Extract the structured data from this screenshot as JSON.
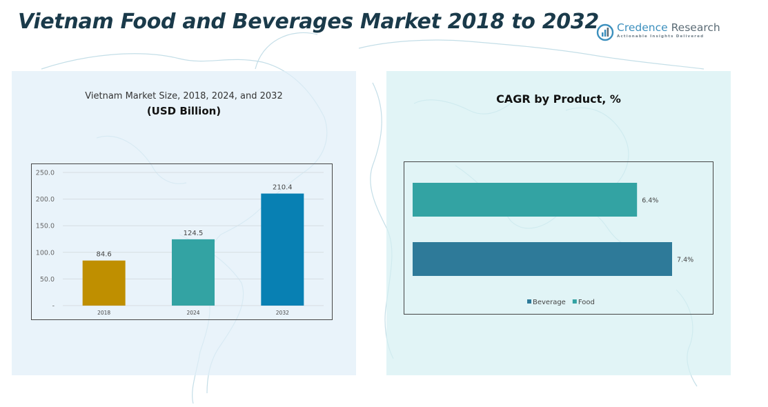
{
  "header": {
    "title": "Vietnam Food and Beverages Market 2018 to 2032",
    "brand_name_1": "Credence",
    "brand_name_2": "Research",
    "brand_tagline": "Actionable Insights Delivered"
  },
  "colors": {
    "title": "#1a3a4a",
    "bar_2018": "#bf8f00",
    "bar_2024": "#33a3a3",
    "bar_2032": "#0880b3",
    "beverage": "#2e7a99",
    "food": "#33a3a3"
  },
  "left_panel": {
    "title": "Vietnam Market Size, 2018, 2024, and 2032",
    "subtitle": "(USD Billion)"
  },
  "right_panel": {
    "title": "CAGR by Product, %"
  },
  "chart_data": [
    {
      "type": "bar",
      "title": "Vietnam Market Size, 2018, 2024, and 2032",
      "subtitle": "(USD Billion)",
      "xlabel": "",
      "ylabel": "",
      "categories": [
        "2018",
        "2024",
        "2032"
      ],
      "values": [
        84.6,
        124.5,
        210.4
      ],
      "data_labels": [
        "84.6",
        "124.5",
        "210.4"
      ],
      "bar_colors": [
        "#bf8f00",
        "#33a3a3",
        "#0880b3"
      ],
      "ylim": [
        0,
        250
      ],
      "yticks": [
        0,
        50,
        100,
        150,
        200,
        250
      ],
      "ytick_labels": [
        "-",
        "50.0",
        "100.0",
        "150.0",
        "200.0",
        "250.0"
      ],
      "grid": true,
      "legend": "none"
    },
    {
      "type": "bar",
      "orientation": "horizontal",
      "title": "CAGR by Product, %",
      "categories": [
        "Food",
        "Beverage"
      ],
      "series": [
        {
          "name": "Beverage",
          "values": [
            null,
            7.4
          ],
          "color": "#2e7a99"
        },
        {
          "name": "Food",
          "values": [
            6.4,
            null
          ],
          "color": "#33a3a3"
        }
      ],
      "values": [
        6.4,
        7.4
      ],
      "data_labels": [
        "6.4%",
        "7.4%"
      ],
      "legend_entries": [
        "Beverage",
        "Food"
      ],
      "legend": "bottom",
      "xlim": [
        0,
        7.4
      ],
      "grid": false,
      "axes_visible": false
    }
  ]
}
